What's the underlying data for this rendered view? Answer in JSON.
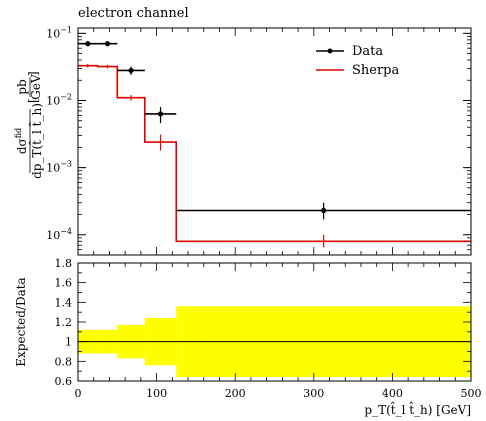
{
  "chart_data": [
    {
      "type": "line",
      "title": "electron channel",
      "xlabel": "",
      "ylabel_numerator": "dσ",
      "ylabel_numerator_sup": "fid",
      "ylabel_denominator": "dp_T(t̂_l t̂_h)",
      "ylabel_unit_num": "pb",
      "ylabel_unit_den": "GeV",
      "yscale": "log",
      "xlim": [
        0,
        500
      ],
      "ylim": [
        5e-05,
        0.12
      ],
      "y_ticks": [
        {
          "value": 0.1,
          "base": "10",
          "exp": "−1"
        },
        {
          "value": 0.01,
          "base": "10",
          "exp": "−2"
        },
        {
          "value": 0.001,
          "base": "10",
          "exp": "−3"
        },
        {
          "value": 0.0001,
          "base": "10",
          "exp": "−4"
        }
      ],
      "legend": {
        "placement": "top-right",
        "entries": [
          {
            "label": "Data",
            "color": "#000000",
            "marker": "dot"
          },
          {
            "label": "Sherpa",
            "color": "#e00000",
            "marker": "none"
          }
        ]
      },
      "bin_edges": [
        0,
        25,
        50,
        85,
        125,
        500
      ],
      "series": [
        {
          "name": "Data",
          "color": "#000000",
          "x": [
            12.5,
            37.5,
            67.5,
            105,
            312.5
          ],
          "xerr": [
            12.5,
            12.5,
            17.5,
            20,
            187.5
          ],
          "y": [
            0.07,
            0.07,
            0.028,
            0.0063,
            0.00023
          ],
          "yerr_low": [
            0.006,
            0.006,
            0.004,
            0.0017,
            6e-05
          ],
          "yerr_high": [
            0.006,
            0.006,
            0.004,
            0.0017,
            7e-05
          ]
        },
        {
          "name": "Sherpa",
          "color": "#e00000",
          "style": "step",
          "x": [
            12.5,
            37.5,
            67.5,
            105,
            312.5
          ],
          "y": [
            0.033,
            0.032,
            0.011,
            0.0024,
            8e-05
          ],
          "yerr_low": [
            0.002,
            0.002,
            0.001,
            0.0006,
            1.5e-05
          ],
          "yerr_high": [
            0.002,
            0.002,
            0.001,
            0.0007,
            2e-05
          ]
        }
      ]
    },
    {
      "type": "area",
      "title": "",
      "xlabel": "p_T(t̂_l t̂_h) [GeV]",
      "ylabel": "Expected/Data",
      "xlim": [
        0,
        500
      ],
      "ylim": [
        0.6,
        1.8
      ],
      "x_ticks": [
        0,
        100,
        200,
        300,
        400,
        500
      ],
      "x_tick_labels": [
        "0",
        "100",
        "200",
        "300",
        "400",
        "500"
      ],
      "y_ticks": [
        0.6,
        0.8,
        1,
        1.2,
        1.4,
        1.6,
        1.8
      ],
      "y_tick_labels": [
        "0.6",
        "0.8",
        "1",
        "1.2",
        "1.4",
        "1.6",
        "1.8"
      ],
      "reference_line": 1.0,
      "band_color": "#ffff00",
      "bins": [
        {
          "x_low": 0,
          "x_high": 25,
          "low": 0.88,
          "high": 1.12
        },
        {
          "x_low": 25,
          "x_high": 50,
          "low": 0.88,
          "high": 1.12
        },
        {
          "x_low": 50,
          "x_high": 85,
          "low": 0.83,
          "high": 1.17
        },
        {
          "x_low": 85,
          "x_high": 125,
          "low": 0.76,
          "high": 1.24
        },
        {
          "x_low": 125,
          "x_high": 500,
          "low": 0.64,
          "high": 1.36
        }
      ]
    }
  ]
}
